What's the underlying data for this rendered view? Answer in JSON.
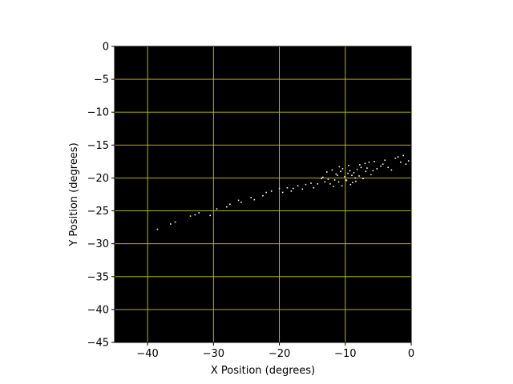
{
  "chart_data": {
    "type": "scatter",
    "xlabel": "X Position (degrees)",
    "ylabel": "Y Position (degrees)",
    "xlim": [
      -45,
      0
    ],
    "ylim": [
      -45,
      0
    ],
    "xticks": [
      -40,
      -30,
      -20,
      -10,
      0
    ],
    "yticks": [
      0,
      -5,
      -10,
      -15,
      -20,
      -25,
      -30,
      -35,
      -40,
      -45
    ],
    "grid": true,
    "colors": {
      "background": "#000000",
      "grid": "#c8c800",
      "points": "#ffffff",
      "points_warm": "#ffe680"
    },
    "series": [
      {
        "x": [
          -38.5,
          -36.5,
          -35.8,
          -33.5,
          -32.8,
          -32.2,
          -30.5,
          -29.5,
          -28.0,
          -27.5,
          -26.2,
          -25.8,
          -24.3,
          -23.8,
          -22.5,
          -22.0,
          -21.2,
          -20.0,
          -19.5,
          -18.8,
          -18.2,
          -17.9,
          -17.2,
          -16.5,
          -16.0,
          -15.2,
          -14.8,
          -14.2,
          -13.6,
          -13.1,
          -12.8,
          -12.3,
          -12.0,
          -11.6,
          -11.2,
          -11.0,
          -10.7,
          -10.4,
          -10.1,
          -9.9,
          -9.6,
          -9.3,
          -9.0,
          -8.7,
          -8.5,
          -8.2,
          -7.9,
          -7.6,
          -7.3,
          -7.0,
          -6.7,
          -6.4,
          -6.1,
          -5.8,
          -5.2,
          -4.6,
          -4.0,
          -3.5,
          -3.0,
          -2.4,
          -2.0,
          -1.6,
          -1.2,
          -0.8,
          -0.4,
          -10.5,
          -9.8,
          -8.9,
          -11.4,
          -12.6,
          -7.8,
          -6.9,
          -9.2,
          -10.9,
          -13.4,
          -8.4,
          -5.6,
          -4.3,
          -11.8,
          -9.5
        ],
        "y": [
          -27.8,
          -27.0,
          -26.7,
          -25.8,
          -25.6,
          -25.3,
          -25.7,
          -24.7,
          -24.4,
          -24.0,
          -23.4,
          -23.7,
          -23.0,
          -23.3,
          -22.7,
          -22.2,
          -22.0,
          -21.6,
          -22.2,
          -21.5,
          -22.0,
          -21.6,
          -21.2,
          -21.7,
          -21.0,
          -20.8,
          -21.5,
          -20.9,
          -20.1,
          -20.6,
          -19.1,
          -20.9,
          -18.8,
          -20.3,
          -19.6,
          -20.6,
          -19.0,
          -18.6,
          -19.8,
          -20.3,
          -19.3,
          -18.9,
          -19.6,
          -19.2,
          -20.0,
          -18.7,
          -19.7,
          -18.4,
          -20.1,
          -17.8,
          -18.5,
          -17.6,
          -19.5,
          -18.9,
          -18.6,
          -18.2,
          -17.3,
          -18.4,
          -18.8,
          -17.0,
          -16.8,
          -17.6,
          -16.6,
          -17.9,
          -17.4,
          -21.2,
          -20.4,
          -20.7,
          -19.4,
          -20.2,
          -18.0,
          -19.0,
          -21.0,
          -18.3,
          -19.9,
          -20.5,
          -17.5,
          -17.9,
          -21.3,
          -18.1
        ]
      }
    ]
  }
}
